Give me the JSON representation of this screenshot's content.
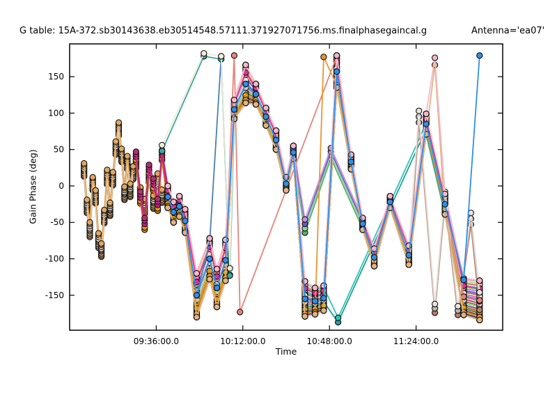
{
  "chart_data": {
    "type": "line",
    "title_left": "G table: 15A-372.sb30143638.eb30514548.57111.371927071756.ms.finalphasegaincal.g",
    "title_right": "Antenna='ea07'",
    "xlabel": "Time",
    "ylabel": "Gain Phase (deg)",
    "legend": "none",
    "grid": false,
    "marker": "circle",
    "xlim_hours": [
      9.0,
      12.0
    ],
    "ylim": [
      -198,
      195
    ],
    "x_ticks": [
      {
        "t": 9.6,
        "label": "09:36:00.0"
      },
      {
        "t": 10.2,
        "label": "10:12:00.0"
      },
      {
        "t": 10.8,
        "label": "10:48:00.0"
      },
      {
        "t": 11.4,
        "label": "11:24:00.0"
      }
    ],
    "y_ticks": [
      {
        "v": -150,
        "label": "-150"
      },
      {
        "v": -100,
        "label": "-100"
      },
      {
        "v": -50,
        "label": "-50"
      },
      {
        "v": 0,
        "label": "0"
      },
      {
        "v": 50,
        "label": "50"
      },
      {
        "v": 100,
        "label": "100"
      },
      {
        "v": 150,
        "label": "150"
      }
    ],
    "paths": {
      "bundle": [
        [
          9.68,
          -15,
          15
        ],
        [
          9.72,
          -36,
          14
        ],
        [
          9.76,
          -28,
          14
        ],
        [
          9.8,
          -48,
          16
        ],
        [
          9.88,
          -150,
          30
        ],
        [
          9.97,
          -100,
          28
        ],
        [
          10.02,
          -140,
          26
        ],
        [
          10.08,
          -102,
          28
        ],
        [
          10.14,
          105,
          13
        ],
        [
          10.22,
          140,
          26
        ],
        [
          10.29,
          126,
          14
        ],
        [
          10.36,
          95,
          12
        ],
        [
          10.43,
          63,
          13
        ],
        [
          10.5,
          3,
          9
        ],
        [
          10.55,
          46,
          9
        ],
        [
          10.63,
          -155,
          24
        ],
        [
          10.7,
          -158,
          18
        ],
        [
          10.76,
          -154,
          17
        ],
        [
          10.85,
          157,
          22
        ],
        [
          10.95,
          33,
          10
        ],
        [
          11.03,
          -52,
          8
        ],
        [
          11.11,
          -98,
          12
        ],
        [
          11.22,
          -22,
          8
        ],
        [
          11.35,
          -95,
          13
        ],
        [
          11.47,
          85,
          14
        ],
        [
          11.6,
          -25,
          14
        ],
        [
          11.73,
          -152,
          25
        ],
        [
          11.84,
          -157,
          27
        ]
      ],
      "tan_prefix": [
        [
          9.1,
          22,
          9
        ],
        [
          9.12,
          -28,
          9
        ],
        [
          9.14,
          -60,
          10
        ],
        [
          9.16,
          3,
          9
        ],
        [
          9.18,
          -15,
          9
        ],
        [
          9.2,
          -75,
          10
        ],
        [
          9.22,
          -88,
          9
        ],
        [
          9.24,
          -42,
          9
        ],
        [
          9.26,
          12,
          10
        ],
        [
          9.28,
          -32,
          9
        ],
        [
          9.3,
          10,
          9
        ],
        [
          9.32,
          52,
          9
        ],
        [
          9.34,
          78,
          9
        ],
        [
          9.36,
          42,
          9
        ],
        [
          9.38,
          -10,
          9
        ],
        [
          9.4,
          32,
          9
        ],
        [
          9.42,
          -6,
          9
        ],
        [
          9.44,
          18,
          9
        ],
        [
          9.46,
          33,
          9
        ],
        [
          9.49,
          -12,
          10
        ],
        [
          9.52,
          -28,
          10
        ],
        [
          9.55,
          13,
          9
        ],
        [
          9.58,
          -22,
          9
        ],
        [
          9.61,
          8,
          9
        ],
        [
          9.64,
          -14,
          9
        ]
      ],
      "magenta_prefix": [
        [
          9.46,
          40,
          7
        ],
        [
          9.49,
          -16,
          8
        ],
        [
          9.52,
          -52,
          8
        ],
        [
          9.55,
          22,
          7
        ],
        [
          9.58,
          2,
          8
        ],
        [
          9.61,
          -26,
          8
        ],
        [
          9.64,
          42,
          7
        ]
      ],
      "mid_detour": [
        [
          10.63,
          -55,
          9
        ],
        [
          10.81,
          45,
          7
        ],
        [
          11.03,
          -52,
          7
        ]
      ],
      "teal_detour": [
        [
          10.63,
          -158,
          10
        ],
        [
          10.76,
          -149,
          10
        ],
        [
          10.86,
          -184,
          3
        ],
        [
          11.47,
          82,
          4
        ]
      ],
      "endw_tail": [
        [
          11.42,
          95,
          8
        ],
        [
          11.53,
          -168,
          6
        ],
        [
          11.6,
          -15,
          7
        ],
        [
          11.69,
          -171,
          6
        ],
        [
          11.78,
          -45,
          8
        ],
        [
          11.84,
          -158,
          12
        ]
      ],
      "steel_detour": [
        [
          9.97,
          -78,
          2
        ],
        [
          10.05,
          178,
          2
        ],
        [
          10.11,
          -122,
          3
        ]
      ],
      "salmon_detour": [
        [
          10.14,
          179,
          1
        ],
        [
          10.18,
          -173,
          1
        ],
        [
          10.85,
          178,
          1
        ]
      ],
      "orange_detour": [
        [
          10.76,
          178,
          1
        ]
      ],
      "top_line": [
        [
          9.64,
          52,
          4
        ],
        [
          9.93,
          180,
          2
        ],
        [
          10.05,
          176,
          2
        ],
        [
          10.11,
          -118,
          5
        ]
      ],
      "pink_detour": [
        [
          11.53,
          171,
          5
        ]
      ],
      "dodger_tail": [
        [
          11.73,
          -129,
          2
        ],
        [
          11.84,
          179,
          1
        ]
      ]
    },
    "groups": {
      "bundle": {
        "parts": [
          {
            "ref": "bundle",
            "from": 9.0,
            "to": 12.0
          }
        ]
      },
      "tan": {
        "parts": [
          {
            "ref": "tan_prefix",
            "from": 9.0,
            "to": 9.65
          },
          {
            "ref": "bundle",
            "from": 9.67,
            "to": 12.0
          }
        ]
      },
      "magenta": {
        "parts": [
          {
            "ref": "magenta_prefix",
            "from": 9.4,
            "to": 9.65
          },
          {
            "ref": "bundle",
            "from": 9.67,
            "to": 12.0
          }
        ]
      },
      "midv": {
        "parts": [
          {
            "ref": "bundle",
            "from": 9.67,
            "to": 10.56
          },
          {
            "ref": "mid_detour",
            "from": 10.6,
            "to": 11.04
          },
          {
            "ref": "bundle",
            "from": 11.1,
            "to": 12.0
          }
        ]
      },
      "tealv": {
        "parts": [
          {
            "ref": "bundle",
            "from": 9.67,
            "to": 10.56
          },
          {
            "ref": "teal_detour",
            "from": 10.6,
            "to": 11.5
          },
          {
            "ref": "bundle",
            "from": 11.55,
            "to": 12.0
          }
        ]
      },
      "endw": {
        "parts": [
          {
            "ref": "bundle",
            "from": 9.67,
            "to": 11.36
          },
          {
            "ref": "endw_tail",
            "from": 11.4,
            "to": 12.0
          }
        ]
      },
      "steel": {
        "parts": [
          {
            "ref": "bundle",
            "from": 9.67,
            "to": 9.9
          },
          {
            "ref": "steel_detour",
            "from": 9.95,
            "to": 10.12
          },
          {
            "ref": "bundle",
            "from": 10.13,
            "to": 12.0
          }
        ]
      },
      "salmon": {
        "parts": [
          {
            "ref": "bundle",
            "from": 9.67,
            "to": 10.09
          },
          {
            "ref": "salmon_detour",
            "from": 10.1,
            "to": 10.9
          },
          {
            "ref": "bundle",
            "from": 10.94,
            "to": 12.0
          }
        ]
      },
      "orange": {
        "parts": [
          {
            "ref": "bundle",
            "from": 9.67,
            "to": 10.71
          },
          {
            "ref": "orange_detour",
            "from": 10.72,
            "to": 10.8
          },
          {
            "ref": "bundle",
            "from": 10.84,
            "to": 12.0
          }
        ]
      },
      "topline": {
        "parts": [
          {
            "ref": "top_line",
            "from": 9.6,
            "to": 10.12
          },
          {
            "ref": "bundle",
            "from": 10.13,
            "to": 12.0
          }
        ]
      },
      "pinktop": {
        "parts": [
          {
            "ref": "bundle",
            "from": 9.67,
            "to": 11.48
          },
          {
            "ref": "pink_detour",
            "from": 11.5,
            "to": 11.55
          },
          {
            "ref": "bundle",
            "from": 11.59,
            "to": 12.0
          }
        ]
      },
      "dodger": {
        "parts": [
          {
            "ref": "bundle",
            "from": 9.67,
            "to": 11.61
          },
          {
            "ref": "dodger_tail",
            "from": 11.7,
            "to": 12.0
          }
        ]
      }
    },
    "series": [
      {
        "id": "s01",
        "group": "bundle",
        "color": "#E0B000",
        "offset": -1.0
      },
      {
        "id": "s02",
        "group": "bundle",
        "color": "#708090",
        "offset": -0.95
      },
      {
        "id": "s03",
        "group": "bundle",
        "color": "#24308A",
        "offset": -0.9
      },
      {
        "id": "s04",
        "group": "bundle",
        "color": "#C71585",
        "offset": -0.15
      },
      {
        "id": "s05",
        "group": "bundle",
        "color": "#D6408B",
        "offset": 0.15
      },
      {
        "id": "s06",
        "group": "bundle",
        "color": "#3CB371",
        "offset": 0.55
      },
      {
        "id": "s07",
        "group": "bundle",
        "color": "#90EE90",
        "offset": 0.85
      },
      {
        "id": "s08",
        "group": "bundle",
        "color": "#2E8B57",
        "offset": -0.55
      },
      {
        "id": "s09",
        "group": "bundle",
        "color": "#20B2AA",
        "offset": 0.35
      },
      {
        "id": "s10",
        "group": "bundle",
        "color": "#40E0D0",
        "offset": -0.35
      },
      {
        "id": "s11",
        "group": "bundle",
        "color": "#87CEEB",
        "offset": 0.65
      },
      {
        "id": "s12",
        "group": "bundle",
        "color": "#2B4FC0",
        "offset": -0.65
      },
      {
        "id": "s13",
        "group": "bundle",
        "color": "#4169E1",
        "offset": 0.05
      },
      {
        "id": "s14",
        "group": "bundle",
        "color": "#7B2D8E",
        "offset": -0.45
      },
      {
        "id": "s15",
        "group": "bundle",
        "color": "#9370DB",
        "offset": 0.45
      },
      {
        "id": "s16",
        "group": "bundle",
        "color": "#DDA0DD",
        "offset": 0.95
      },
      {
        "id": "s17",
        "group": "bundle",
        "color": "#A0522D",
        "offset": -0.25
      },
      {
        "id": "s18",
        "group": "bundle",
        "color": "#8B2500",
        "offset": -0.75
      },
      {
        "id": "s19",
        "group": "bundle",
        "color": "#CC3333",
        "offset": 0.25
      },
      {
        "id": "s20",
        "group": "bundle",
        "color": "#C06030",
        "offset": 0.75
      },
      {
        "id": "s21",
        "group": "bundle",
        "color": "#BDB76B",
        "offset": -0.05
      },
      {
        "id": "s22",
        "group": "bundle",
        "color": "#E8D44D",
        "offset": 1.0
      },
      {
        "id": "s23",
        "group": "midv",
        "color": "#58B368",
        "offset": -1.0
      },
      {
        "id": "s24",
        "group": "midv",
        "color": "#8FD694",
        "offset": -0.33
      },
      {
        "id": "s25",
        "group": "midv",
        "color": "#6A5ACD",
        "offset": 0.33
      },
      {
        "id": "s26",
        "group": "midv",
        "color": "#C891D8",
        "offset": 1.0
      },
      {
        "id": "s27",
        "group": "tealv",
        "color": "#1F9E9E",
        "offset": -1.0
      },
      {
        "id": "s28",
        "group": "tealv",
        "color": "#2FC4B2",
        "offset": 1.0
      },
      {
        "id": "s29",
        "group": "tan",
        "color": "#D9B990",
        "offset": -1.0
      },
      {
        "id": "s30",
        "group": "tan",
        "color": "#B8894F",
        "offset": -0.8
      },
      {
        "id": "s31",
        "group": "tan",
        "color": "#D8A96E",
        "offset": -0.5
      },
      {
        "id": "s32",
        "group": "tan",
        "color": "#CCC8C0",
        "offset": -0.2
      },
      {
        "id": "s33",
        "group": "tan",
        "color": "#DEB887",
        "offset": 0.0
      },
      {
        "id": "s34",
        "group": "tan",
        "color": "#EFE9DC",
        "offset": 0.2
      },
      {
        "id": "s35",
        "group": "tan",
        "color": "#E3C9A3",
        "offset": 0.5
      },
      {
        "id": "s36",
        "group": "tan",
        "color": "#F5CBA7",
        "offset": 0.8
      },
      {
        "id": "s37",
        "group": "tan",
        "color": "#E0A860",
        "offset": 1.0
      },
      {
        "id": "s38",
        "group": "magenta",
        "color": "#E07820",
        "offset": -1.0
      },
      {
        "id": "s39",
        "group": "magenta",
        "color": "#D4A017",
        "offset": -0.6
      },
      {
        "id": "s40",
        "group": "magenta",
        "color": "#C71585",
        "offset": 0.0
      },
      {
        "id": "s41",
        "group": "magenta",
        "color": "#E0309A",
        "offset": 0.6
      },
      {
        "id": "s42",
        "group": "magenta",
        "color": "#B03070",
        "offset": 1.0
      },
      {
        "id": "s43",
        "group": "endw",
        "color": "#BE7A6A",
        "offset": -1.0
      },
      {
        "id": "s44",
        "group": "endw",
        "color": "#BEB6AE",
        "offset": 0.0
      },
      {
        "id": "s45",
        "group": "endw",
        "color": "#E8E4DC",
        "offset": 1.0
      },
      {
        "id": "s46",
        "group": "steel",
        "color": "#4A7EB5",
        "offset": 0.0
      },
      {
        "id": "s47",
        "group": "salmon",
        "color": "#E8837B",
        "offset": 0.0
      },
      {
        "id": "s48",
        "group": "orange",
        "color": "#E89530",
        "offset": -0.85
      },
      {
        "id": "s49",
        "group": "topline",
        "color": "#3AA8A0",
        "offset": -1.0
      },
      {
        "id": "s50",
        "group": "topline",
        "color": "#F0EBD8",
        "offset": 1.0
      },
      {
        "id": "s51",
        "group": "pinktop",
        "color": "#E2B384",
        "offset": -1.0
      },
      {
        "id": "s52",
        "group": "pinktop",
        "color": "#F4B8C8",
        "offset": 1.0
      },
      {
        "id": "s53",
        "group": "dodger",
        "color": "#2E8FE8",
        "offset": 0.0
      }
    ]
  }
}
